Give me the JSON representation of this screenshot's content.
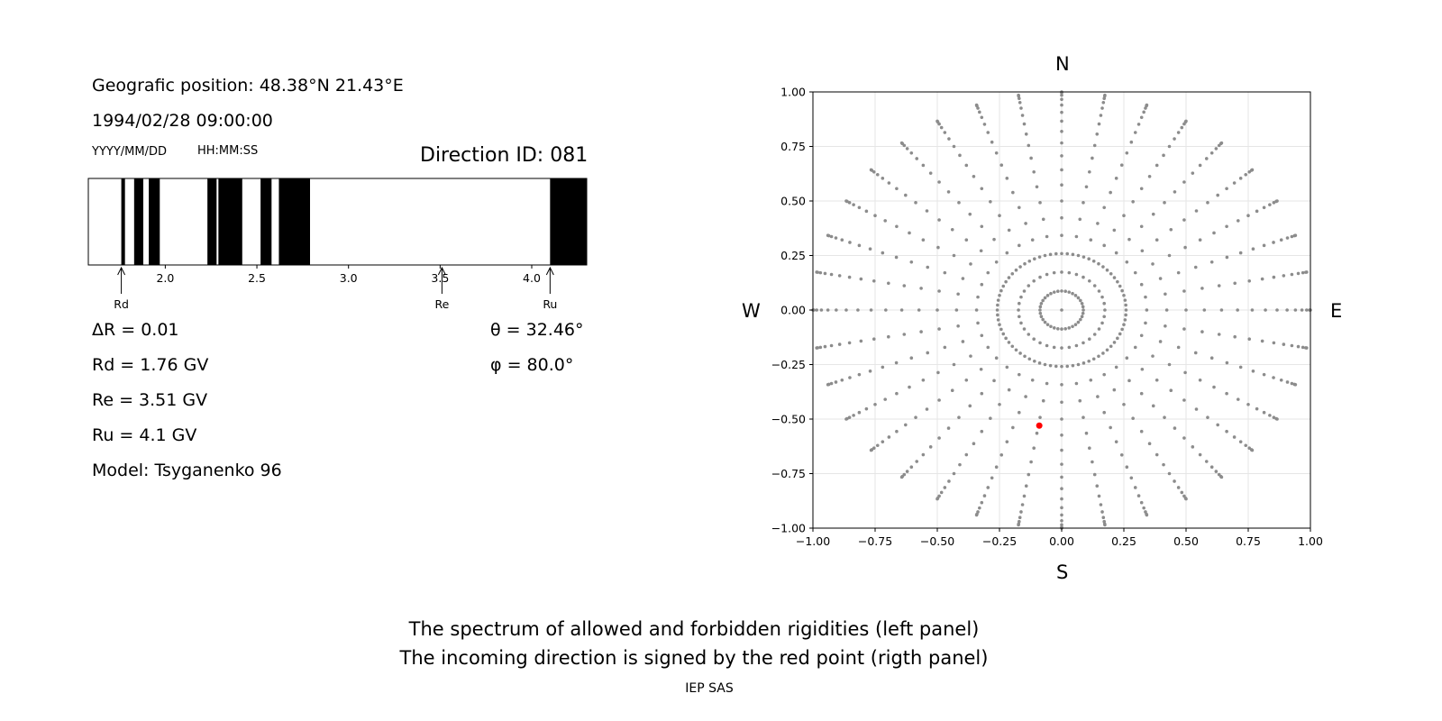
{
  "left_panel": {
    "geo_position": "Geografic position: 48.38°N 21.43°E",
    "datetime": "1994/02/28 09:00:00",
    "date_format": "YYYY/MM/DD",
    "time_format": "HH:MM:SS",
    "direction_id": "Direction ID: 081",
    "params": {
      "delta_r": "ΔR = 0.01",
      "rd": "Rd = 1.76 GV",
      "re": "Re = 3.51 GV",
      "ru": "Ru = 4.1 GV",
      "model": "Model: Tsyganenko 96",
      "theta": "θ = 32.46°",
      "phi": "φ = 80.0°"
    },
    "markers": {
      "rd": "Rd",
      "re": "Re",
      "ru": "Ru"
    }
  },
  "right_panel": {
    "compass": {
      "n": "N",
      "s": "S",
      "w": "W",
      "e": "E"
    }
  },
  "footer": {
    "caption_line1": "The spectrum of allowed and forbidden rigidities (left panel)",
    "caption_line2": "The incoming direction is signed by the red point (rigth panel)",
    "credit": "IEP SAS"
  },
  "colors": {
    "forbidden": "#000000",
    "allowed": "#ffffff",
    "grid_points": "#8c8c8c",
    "direction_point": "#ff0000"
  },
  "chart_data": [
    {
      "type": "bar",
      "name": "rigidity-spectrum",
      "xlim": [
        1.58,
        4.3
      ],
      "xticks": [
        2.0,
        2.5,
        3.0,
        3.5,
        4.0
      ],
      "xtick_labels": [
        "2.0",
        "2.5",
        "3.0",
        "3.5",
        "4.0"
      ],
      "forbidden_bands": [
        [
          1.76,
          1.78
        ],
        [
          1.83,
          1.88
        ],
        [
          1.91,
          1.97
        ],
        [
          2.23,
          2.28
        ],
        [
          2.29,
          2.42
        ],
        [
          2.52,
          2.58
        ],
        [
          2.62,
          2.79
        ],
        [
          4.1,
          4.3
        ]
      ],
      "markers": [
        {
          "label": "Rd",
          "value": 1.76
        },
        {
          "label": "Re",
          "value": 3.51
        },
        {
          "label": "Ru",
          "value": 4.1
        }
      ]
    },
    {
      "type": "scatter",
      "name": "direction-map",
      "xlim": [
        -1.0,
        1.0
      ],
      "ylim": [
        -1.0,
        1.0
      ],
      "xticks": [
        -1.0,
        -0.75,
        -0.5,
        -0.25,
        0.0,
        0.25,
        0.5,
        0.75,
        1.0
      ],
      "xtick_labels": [
        "−1.00",
        "−0.75",
        "−0.50",
        "−0.25",
        "0.00",
        "0.25",
        "0.50",
        "0.75",
        "1.00"
      ],
      "yticks": [
        1.0,
        0.75,
        0.5,
        0.25,
        0.0,
        -0.25,
        -0.5,
        -0.75,
        -1.0
      ],
      "ytick_labels": [
        "1.00",
        "0.75",
        "0.50",
        "0.25",
        "0.00",
        "−0.25",
        "−0.50",
        "−0.75",
        "−1.00"
      ],
      "grid": true,
      "grid_theta_deg": [
        0,
        5,
        10,
        15,
        20,
        25,
        30,
        35,
        40,
        45,
        50,
        55,
        60,
        65,
        70,
        75,
        80,
        85,
        90
      ],
      "grid_phi_step_deg": 10,
      "grid_ring_phi_step_deg": 5,
      "highlight": {
        "x": -0.09,
        "y": -0.53
      }
    }
  ]
}
